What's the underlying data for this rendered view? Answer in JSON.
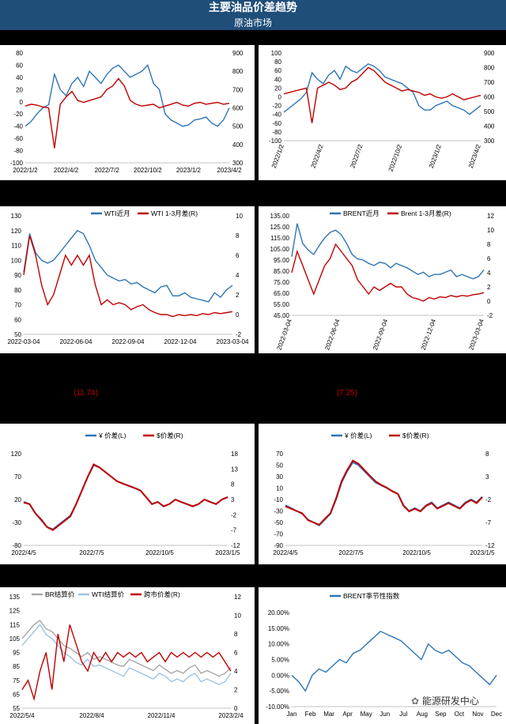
{
  "header": {
    "title": "主要油品价差趋势",
    "subtitle": "原油市场"
  },
  "notes": {
    "left": "(11.74)",
    "right": "(7.25)"
  },
  "watermark": "能源研发中心",
  "colors": {
    "blue": "#2e75b6",
    "red": "#c00000",
    "lightblue": "#9dc3e6",
    "gray": "#a6a6a6",
    "band": "#1f4e79"
  },
  "chart_data": [
    {
      "id": "c1",
      "type": "line",
      "x_ticks": [
        "2022/1/2",
        "2022/4/2",
        "2022/7/2",
        "2022/10/2",
        "2023/1/2",
        "2023/4/2"
      ],
      "y_left": {
        "min": -100,
        "max": 80,
        "ticks": [
          "80",
          "60",
          "40",
          "20",
          "0",
          "-20",
          "-40",
          "-60",
          "-80",
          "-100"
        ]
      },
      "y_right": {
        "min": 300,
        "max": 900,
        "ticks": [
          "900",
          "800",
          "700",
          "600",
          "500",
          "400",
          "300"
        ]
      },
      "series": [
        {
          "color": "#2e75b6",
          "axis": "left",
          "values": [
            -40,
            -32,
            -20,
            -10,
            -5,
            45,
            20,
            10,
            30,
            40,
            25,
            50,
            40,
            30,
            45,
            55,
            60,
            50,
            40,
            45,
            50,
            60,
            30,
            20,
            -20,
            -30,
            -35,
            -40,
            -38,
            -30,
            -28,
            -25,
            -35,
            -40,
            -30,
            -10
          ]
        },
        {
          "color": "#c00000",
          "axis": "right",
          "values": [
            610,
            620,
            615,
            605,
            600,
            380,
            620,
            660,
            690,
            640,
            630,
            640,
            650,
            660,
            700,
            720,
            760,
            720,
            640,
            620,
            610,
            615,
            620,
            600,
            610,
            620,
            630,
            615,
            610,
            625,
            630,
            620,
            625,
            630,
            620,
            625
          ]
        }
      ]
    },
    {
      "id": "c2",
      "type": "line",
      "x_ticks": [
        "2022/1/2",
        "2022/4/2",
        "2022/7/2",
        "2022/10/2",
        "2023/1/2",
        "2023/4/2"
      ],
      "y_left": {
        "min": -100,
        "max": 100,
        "ticks": [
          "100",
          "80",
          "60",
          "40",
          "20",
          "0",
          "-20",
          "-40",
          "-60",
          "-80",
          "-100"
        ]
      },
      "y_right": {
        "min": 300,
        "max": 900,
        "ticks": [
          "900",
          "800",
          "700",
          "600",
          "500",
          "400",
          "300"
        ]
      },
      "series": [
        {
          "color": "#2e75b6",
          "axis": "left",
          "values": [
            -35,
            -25,
            -15,
            -5,
            10,
            55,
            40,
            30,
            50,
            60,
            40,
            70,
            60,
            55,
            65,
            75,
            70,
            60,
            45,
            40,
            35,
            30,
            20,
            10,
            -20,
            -30,
            -30,
            -20,
            -15,
            -10,
            -20,
            -25,
            -30,
            -40,
            -30,
            -20
          ]
        },
        {
          "color": "#c00000",
          "axis": "right",
          "values": [
            620,
            630,
            640,
            650,
            660,
            420,
            660,
            680,
            700,
            680,
            650,
            660,
            700,
            720,
            760,
            800,
            780,
            740,
            700,
            680,
            660,
            640,
            650,
            640,
            630,
            610,
            620,
            600,
            590,
            600,
            620,
            600,
            580,
            590,
            600,
            610
          ]
        }
      ]
    },
    {
      "id": "c3",
      "type": "line",
      "x_ticks": [
        "2022-03-04",
        "2022-06-04",
        "2022-09-04",
        "2022-12-04",
        "2023-03-04"
      ],
      "legend": [
        "WTI近月",
        "WTI 1-3月差(R)"
      ],
      "y_left": {
        "min": 50,
        "max": 130,
        "ticks": [
          "130",
          "120",
          "110",
          "100",
          "90",
          "80",
          "70",
          "60",
          "50"
        ]
      },
      "y_right": {
        "min": -2,
        "max": 10,
        "ticks": [
          "10",
          "8",
          "6",
          "4",
          "2",
          "0",
          "-2"
        ]
      },
      "series": [
        {
          "name": "WTI近月",
          "color": "#2e75b6",
          "axis": "left",
          "values": [
            92,
            118,
            105,
            100,
            98,
            100,
            105,
            110,
            115,
            120,
            118,
            110,
            100,
            95,
            90,
            88,
            86,
            87,
            84,
            85,
            82,
            80,
            78,
            82,
            83,
            76,
            76,
            78,
            75,
            74,
            73,
            72,
            78,
            75,
            80,
            83
          ]
        },
        {
          "name": "WTI 1-3月差(R)",
          "color": "#c00000",
          "axis": "right",
          "values": [
            4,
            8,
            6,
            3,
            1,
            2,
            4,
            6,
            5,
            6,
            5,
            6,
            3,
            1,
            1.5,
            1,
            1.2,
            1,
            0.5,
            0.8,
            1,
            0.5,
            0.2,
            0,
            0,
            -0.2,
            0,
            -0.1,
            0,
            -0.1,
            0.1,
            0,
            0.2,
            0.1,
            0.2,
            0.3
          ]
        }
      ]
    },
    {
      "id": "c4",
      "type": "line",
      "x_ticks": [
        "2022-03-04",
        "2022-06-04",
        "2022-09-04",
        "2022-12-04",
        "2023-03-04"
      ],
      "legend": [
        "BRENT近月",
        "Brent 1-3月差(R)"
      ],
      "y_left": {
        "min": 45,
        "max": 135,
        "ticks": [
          "135.00",
          "125.00",
          "115.00",
          "105.00",
          "95.00",
          "85.00",
          "75.00",
          "65.00",
          "55.00",
          "45.00"
        ]
      },
      "y_right": {
        "min": -2,
        "max": 12,
        "ticks": [
          "12",
          "10",
          "8",
          "6",
          "4",
          "2",
          "0",
          "-2"
        ]
      },
      "series": [
        {
          "name": "BRENT近月",
          "color": "#2e75b6",
          "axis": "left",
          "values": [
            98,
            128,
            110,
            104,
            100,
            108,
            115,
            120,
            122,
            118,
            110,
            100,
            96,
            95,
            92,
            90,
            93,
            92,
            88,
            92,
            90,
            88,
            85,
            82,
            84,
            80,
            82,
            82,
            84,
            86,
            80,
            82,
            80,
            78,
            80,
            86
          ]
        },
        {
          "name": "Brent 1-3月差(R)",
          "color": "#c00000",
          "axis": "right",
          "values": [
            4,
            7,
            5,
            3,
            1,
            3,
            5,
            6,
            8,
            7,
            6,
            5,
            3,
            2,
            1,
            2,
            1.5,
            2,
            2.5,
            2,
            2,
            1,
            0.5,
            0.3,
            0,
            0.5,
            0.3,
            0.6,
            0.5,
            0.8,
            0.6,
            0.8,
            0.7,
            0.9,
            1,
            1.2
          ]
        }
      ]
    },
    {
      "id": "c5",
      "type": "line",
      "x_ticks": [
        "2022/4/5",
        "2022/7/5",
        "2022/10/5",
        "2023/1/5"
      ],
      "legend": [
        "¥ 价差(L)",
        "$价差(R)"
      ],
      "y_left": {
        "min": -80,
        "max": 120,
        "ticks": [
          "120",
          "70",
          "20",
          "-30",
          "-80"
        ]
      },
      "y_right": {
        "min": -12,
        "max": 18,
        "ticks": [
          "18",
          "13",
          "8",
          "3",
          "-2",
          "-7",
          "-12"
        ]
      },
      "series": [
        {
          "name": "¥ 价差(L)",
          "color": "#2e75b6",
          "axis": "left",
          "values": [
            15,
            10,
            -10,
            -25,
            -40,
            -45,
            -35,
            -25,
            -15,
            10,
            40,
            70,
            95,
            90,
            80,
            70,
            60,
            55,
            50,
            45,
            40,
            25,
            10,
            15,
            5,
            10,
            20,
            15,
            10,
            5,
            10,
            20,
            15,
            10,
            20,
            25
          ]
        },
        {
          "name": "$价差(R)",
          "color": "#c00000",
          "axis": "right",
          "values": [
            2,
            1.5,
            -1.5,
            -3.5,
            -6,
            -7,
            -5.5,
            -4,
            -2.5,
            1.5,
            6,
            10.5,
            14.5,
            13.5,
            12,
            10.5,
            9,
            8.2,
            7.5,
            6.8,
            6,
            3.8,
            1.5,
            2.2,
            0.8,
            1.5,
            3,
            2.2,
            1.5,
            0.8,
            1.5,
            3,
            2.2,
            1.5,
            3,
            3.8
          ]
        }
      ]
    },
    {
      "id": "c6",
      "type": "line",
      "x_ticks": [
        "2022/4/5",
        "2022/7/5",
        "2022/10/5",
        "2023/1/5"
      ],
      "legend": [
        "¥ 价差(L)",
        "$价差(R)"
      ],
      "y_left": {
        "min": -90,
        "max": 70,
        "ticks": [
          "70",
          "50",
          "30",
          "10",
          "-10",
          "-30",
          "-50",
          "-70",
          "-90"
        ]
      },
      "y_right": {
        "min": -12,
        "max": 8,
        "ticks": [
          "8",
          "3",
          "-2",
          "-7",
          "-12"
        ]
      },
      "series": [
        {
          "name": "¥ 价差(L)",
          "color": "#2e75b6",
          "axis": "left",
          "values": [
            -20,
            -25,
            -30,
            -35,
            -45,
            -50,
            -55,
            -45,
            -35,
            -10,
            20,
            40,
            55,
            50,
            40,
            30,
            20,
            15,
            10,
            5,
            0,
            -20,
            -30,
            -25,
            -30,
            -20,
            -15,
            -25,
            -20,
            -15,
            -20,
            -25,
            -15,
            -10,
            -15,
            -5
          ]
        },
        {
          "name": "$价差(R)",
          "color": "#c00000",
          "axis": "right",
          "values": [
            -3.5,
            -4,
            -4.5,
            -5,
            -6.5,
            -7,
            -7.5,
            -6.2,
            -5,
            -1.8,
            2,
            4.5,
            6.5,
            5.8,
            4.5,
            3.2,
            2,
            1.2,
            0.6,
            -0.2,
            -0.8,
            -3.4,
            -4.6,
            -4,
            -4.6,
            -3.4,
            -2.8,
            -4,
            -3.4,
            -2.8,
            -3.4,
            -4,
            -2.8,
            -2.1,
            -2.8,
            -1.5
          ]
        }
      ]
    },
    {
      "id": "c7",
      "type": "line",
      "x_ticks": [
        "2022/5/4",
        "2022/8/4",
        "2022/11/4",
        "2023/2/4"
      ],
      "legend": [
        "BR结算价",
        "WTI结算价",
        "跨市价差(R)"
      ],
      "y_left": {
        "min": 55,
        "max": 135,
        "ticks": [
          "135",
          "125",
          "115",
          "105",
          "95",
          "85",
          "75",
          "65",
          "55"
        ]
      },
      "y_right": {
        "min": 0,
        "max": 12,
        "ticks": [
          "12",
          "10",
          "8",
          "6",
          "4",
          "2",
          "0"
        ]
      },
      "series": [
        {
          "name": "BR结算价",
          "color": "#a6a6a6",
          "axis": "left",
          "values": [
            105,
            110,
            115,
            118,
            112,
            110,
            105,
            100,
            98,
            95,
            92,
            95,
            90,
            92,
            90,
            88,
            86,
            85,
            90,
            88,
            86,
            84,
            82,
            86,
            83,
            80,
            82,
            80,
            84,
            86,
            80,
            82,
            80,
            78,
            80,
            84
          ]
        },
        {
          "name": "WTI结算价",
          "color": "#9dc3e6",
          "axis": "left",
          "values": [
            100,
            105,
            110,
            115,
            108,
            105,
            100,
            95,
            92,
            88,
            86,
            90,
            85,
            86,
            84,
            82,
            80,
            78,
            84,
            82,
            80,
            78,
            76,
            80,
            78,
            74,
            76,
            74,
            78,
            80,
            74,
            76,
            74,
            72,
            74,
            80
          ]
        },
        {
          "name": "跨市价差(R)",
          "color": "#c00000",
          "axis": "right",
          "values": [
            2,
            3,
            1,
            4,
            6,
            2,
            8,
            5,
            9,
            7,
            5,
            4,
            6,
            5,
            6,
            5,
            6,
            5.5,
            6,
            5.5,
            6,
            5,
            5.5,
            6,
            5,
            6,
            5.5,
            6,
            5.5,
            6,
            5.5,
            6,
            5.5,
            6,
            5,
            4
          ]
        }
      ]
    },
    {
      "id": "c8",
      "type": "line",
      "legend": [
        "BRENT季节性指数"
      ],
      "x_ticks": [
        "Jan",
        "Feb",
        "Mar",
        "Apr",
        "May",
        "Jun",
        "Jul",
        "Aug",
        "Sep",
        "Oct",
        "Nov",
        "Dec"
      ],
      "y_left": {
        "min": -10,
        "max": 20,
        "ticks": [
          "20.00%",
          "15.00%",
          "10.00%",
          "5.00%",
          "0.00%",
          "-5.00%",
          "-10.00%"
        ]
      },
      "series": [
        {
          "name": "BRENT季节性指数",
          "color": "#2e75b6",
          "axis": "left",
          "values": [
            0,
            -2,
            -5,
            0,
            2,
            1,
            3,
            5,
            4,
            7,
            8,
            10,
            12,
            14,
            13,
            12,
            11,
            9,
            7,
            5,
            10,
            8,
            7,
            8,
            6,
            4,
            3,
            1,
            -1,
            -3,
            0
          ]
        }
      ]
    }
  ]
}
